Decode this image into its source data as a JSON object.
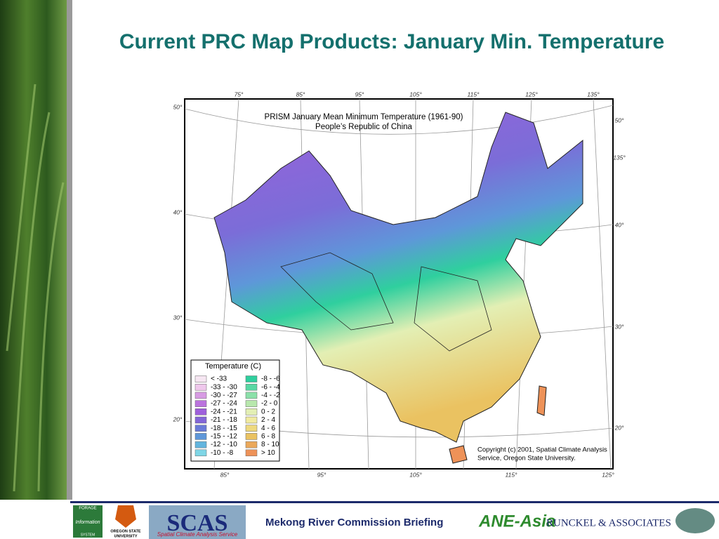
{
  "header": {
    "title": "Current PRC Map Products: January Min. Temperature"
  },
  "map": {
    "title_lines": [
      "PRISM January Mean Minimum Temperature (1961-90)",
      "People’s Republic of China"
    ],
    "lon_top": [
      "75°",
      "85°",
      "95°",
      "105°",
      "115°",
      "125°",
      "135°"
    ],
    "lat_left": [
      "50°",
      "40°",
      "30°",
      "20°"
    ],
    "lat_right": [
      "50°",
      "135°",
      "40°",
      "30°",
      "20°"
    ],
    "lon_bottom": [
      "85°",
      "95°",
      "105°",
      "115°",
      "125°"
    ],
    "legend": {
      "title": "Temperature (C)",
      "items": [
        {
          "label": "<  -33",
          "color": "#f6e6f2"
        },
        {
          "label": "-33 - -30",
          "color": "#efc8ec"
        },
        {
          "label": "-30 - -27",
          "color": "#d79be3"
        },
        {
          "label": "-27 - -24",
          "color": "#bb73de"
        },
        {
          "label": "-24 - -21",
          "color": "#9e5fdb"
        },
        {
          "label": "-21 - -18",
          "color": "#8466d8"
        },
        {
          "label": "-18 - -15",
          "color": "#6a7bd8"
        },
        {
          "label": "-15 - -12",
          "color": "#5e97d9"
        },
        {
          "label": "-12 - -10",
          "color": "#63b5de"
        },
        {
          "label": "-10 - -8",
          "color": "#7fd6e6"
        },
        {
          "label": "-8 - -6",
          "color": "#2fcf9e"
        },
        {
          "label": "-6 - -4",
          "color": "#59d8a4"
        },
        {
          "label": "-4 - -2",
          "color": "#8be0a9"
        },
        {
          "label": "-2 - 0",
          "color": "#b8e8ad"
        },
        {
          "label": "0 - 2",
          "color": "#e3efb4"
        },
        {
          "label": "2 - 4",
          "color": "#f1eba0"
        },
        {
          "label": "4 - 6",
          "color": "#eed97e"
        },
        {
          "label": "6 - 8",
          "color": "#eac261"
        },
        {
          "label": "8 - 10",
          "color": "#eba85a"
        },
        {
          "label": "> 10",
          "color": "#ee9258"
        }
      ]
    },
    "copyright_lines": [
      "Copyright (c) 2001,  Spatial Climate Analysis",
      "Service, Oregon State University."
    ]
  },
  "footer": {
    "forage": [
      "FORAGE",
      "Information",
      "SYSTEM"
    ],
    "osu": [
      "OREGON STATE",
      "UNIVERSITY"
    ],
    "scas": "SCAS",
    "scas_sub": "Spatial Climate Analysis Service",
    "briefing": "Mekong River Commission Briefing",
    "ane": "ANE-Asia",
    "runckel": "RUNCKEL & ASSOCIATES"
  }
}
